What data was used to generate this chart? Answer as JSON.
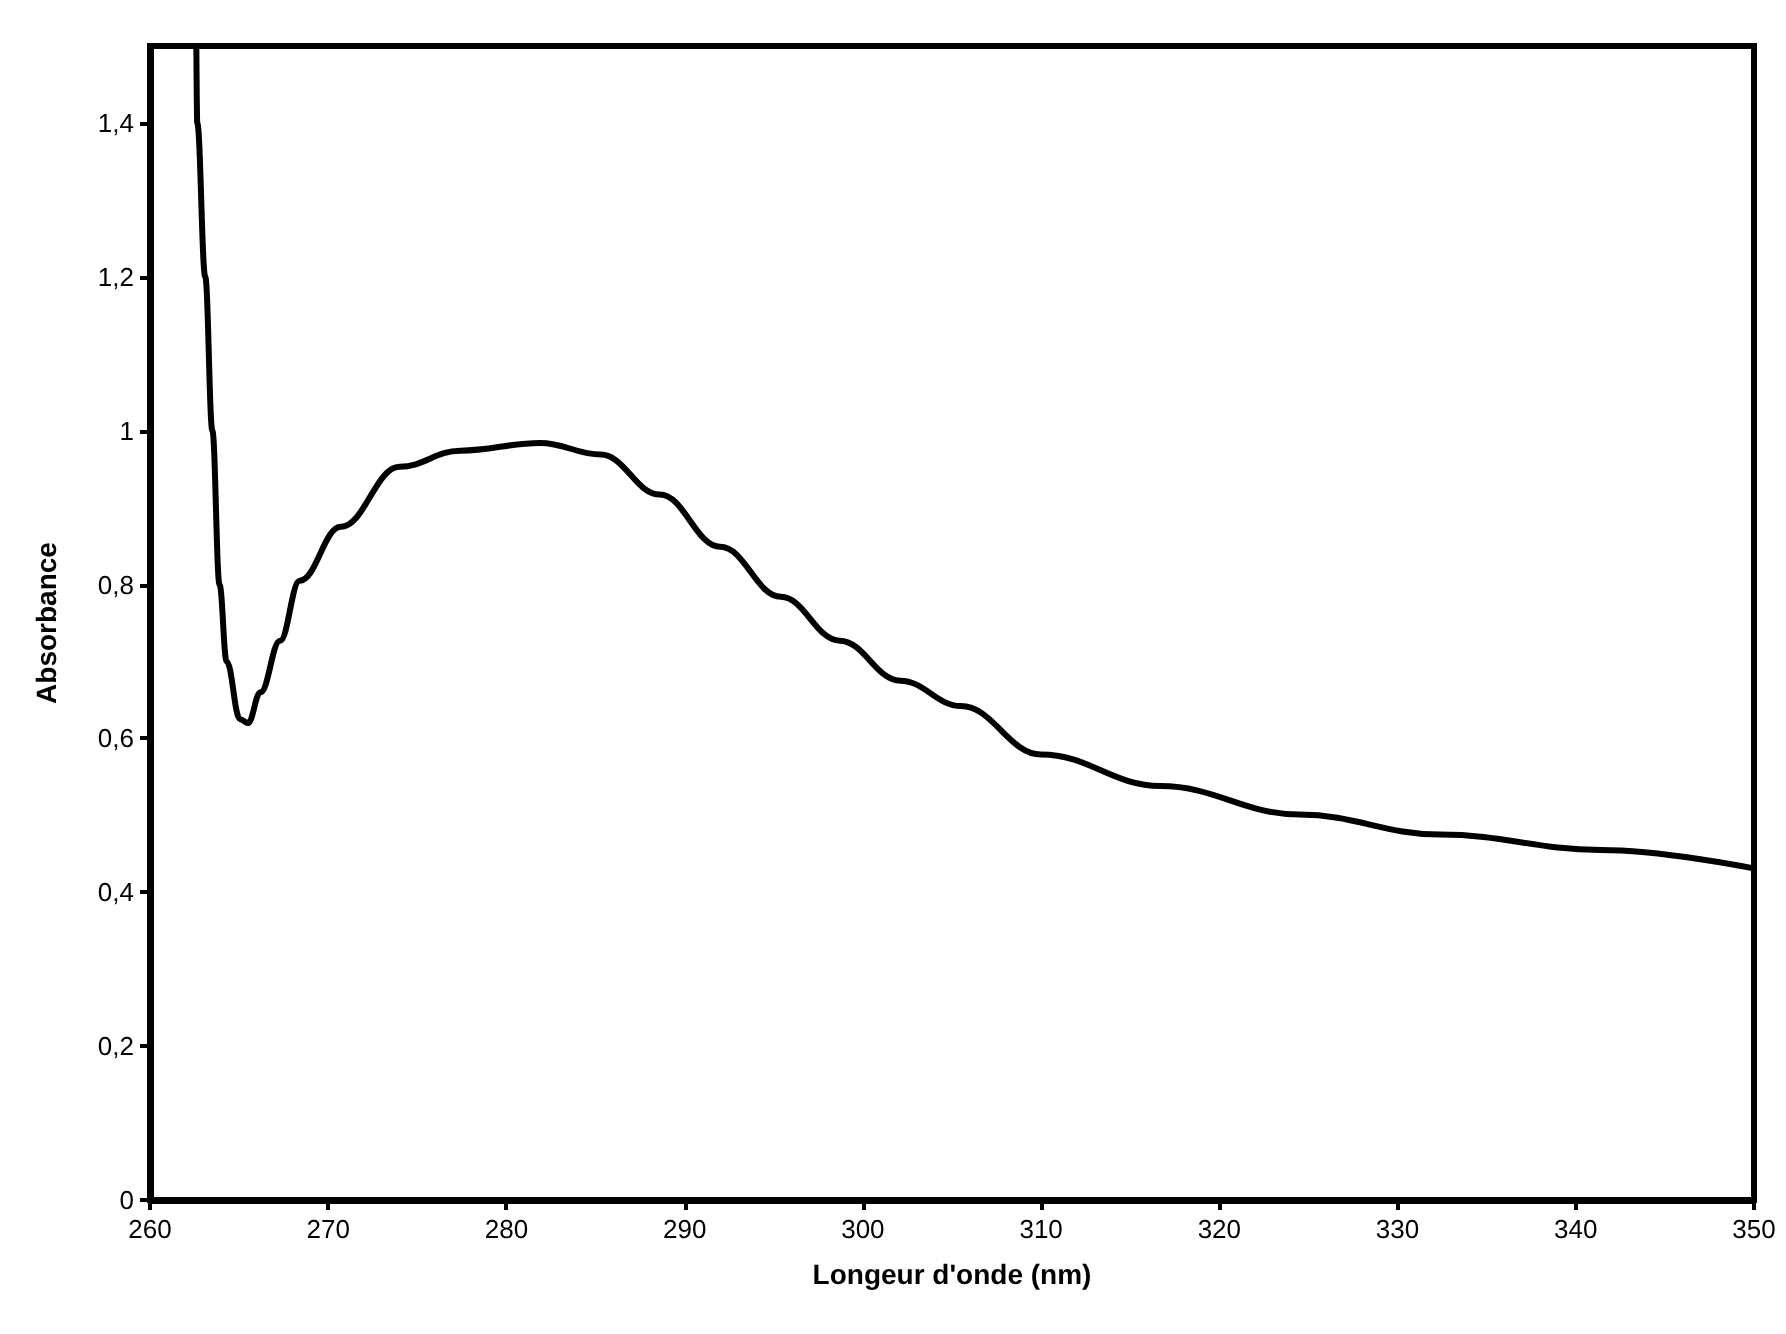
{
  "chart_data": {
    "type": "line",
    "xlabel": "Longeur d'onde (nm)",
    "ylabel": "Absorbance",
    "x": [
      262.6,
      262.65,
      263.1,
      263.5,
      263.9,
      264.3,
      265.05,
      265.5,
      266.2,
      267.3,
      268.4,
      270.7,
      274.0,
      277.4,
      281.9,
      285.3,
      288.6,
      292.0,
      295.4,
      298.7,
      302.1,
      305.5,
      310.0,
      316.7,
      324.5,
      332.4,
      341.4,
      350
    ],
    "series": [
      {
        "color": "#000000",
        "values": [
          1.5,
          1.4,
          1.2,
          1.0,
          0.8,
          0.7,
          0.625,
          0.62,
          0.66,
          0.727,
          0.805,
          0.875,
          0.953,
          0.974,
          0.984,
          0.969,
          0.917,
          0.849,
          0.784,
          0.727,
          0.675,
          0.642,
          0.579,
          0.538,
          0.501,
          0.475,
          0.455,
          0.431
        ]
      }
    ],
    "xlim": [
      260,
      350
    ],
    "xticks": [
      260,
      270,
      280,
      290,
      300,
      310,
      320,
      330,
      340,
      350
    ],
    "ylim": [
      0,
      1.5
    ],
    "yticks": [
      0,
      {
        "value": 0.2,
        "label": "0,2"
      },
      {
        "value": 0.4,
        "label": "0,4"
      },
      {
        "value": 0.6,
        "label": "0,6"
      },
      {
        "value": 0.8,
        "label": "0,8"
      },
      1,
      {
        "value": 1.2,
        "label": "1,2"
      },
      {
        "value": 1.4,
        "label": "1,4"
      }
    ],
    "grid": false,
    "marker": "none",
    "line_style": "solid"
  }
}
